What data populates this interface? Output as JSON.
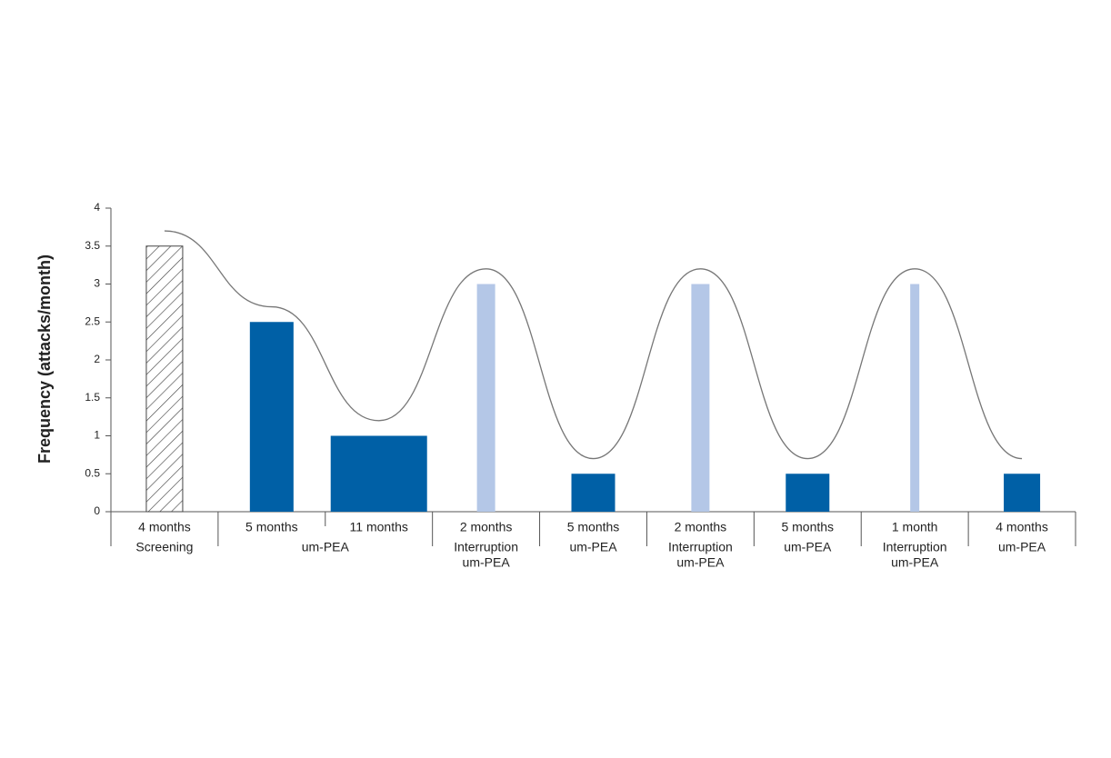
{
  "chart_data": {
    "type": "bar",
    "y_label": "Frequency (attacks/month)",
    "categories": [
      "4 months",
      "5 months",
      "11 months",
      "2 months",
      "5 months",
      "2 months",
      "5 months",
      "1 month",
      "4 months"
    ],
    "values": [
      3.5,
      2.5,
      1,
      3,
      0.5,
      3,
      0.5,
      3,
      0.5
    ],
    "trend": [
      3.7,
      2.7,
      1.2,
      3.2,
      0.7,
      3.2,
      0.7,
      3.2,
      0.7
    ],
    "trend_color": "#777777",
    "groups": [
      {
        "label": [
          "Screening"
        ],
        "categories": [
          0
        ],
        "color": "#444444",
        "pattern": "hatch"
      },
      {
        "label": [
          "um-PEA"
        ],
        "categories": [
          1,
          2
        ],
        "color": "#0060a6"
      },
      {
        "label": [
          "Interruption",
          "um-PEA"
        ],
        "categories": [
          3
        ],
        "color": "#b4c7e7"
      },
      {
        "label": [
          "um-PEA"
        ],
        "categories": [
          4
        ],
        "color": "#0060a6"
      },
      {
        "label": [
          "Interruption",
          "um-PEA"
        ],
        "categories": [
          5
        ],
        "color": "#b4c7e7"
      },
      {
        "label": [
          "um-PEA"
        ],
        "categories": [
          6
        ],
        "color": "#0060a6"
      },
      {
        "label": [
          "Interruption",
          "um-PEA"
        ],
        "categories": [
          7
        ],
        "color": "#b4c7e7"
      },
      {
        "label": [
          "um-PEA"
        ],
        "categories": [
          8
        ],
        "color": "#0060a6"
      }
    ],
    "ylim": [
      0,
      4
    ],
    "yticks": [
      0,
      0.5,
      1,
      1.5,
      2,
      2.5,
      3,
      3.5,
      4
    ]
  }
}
